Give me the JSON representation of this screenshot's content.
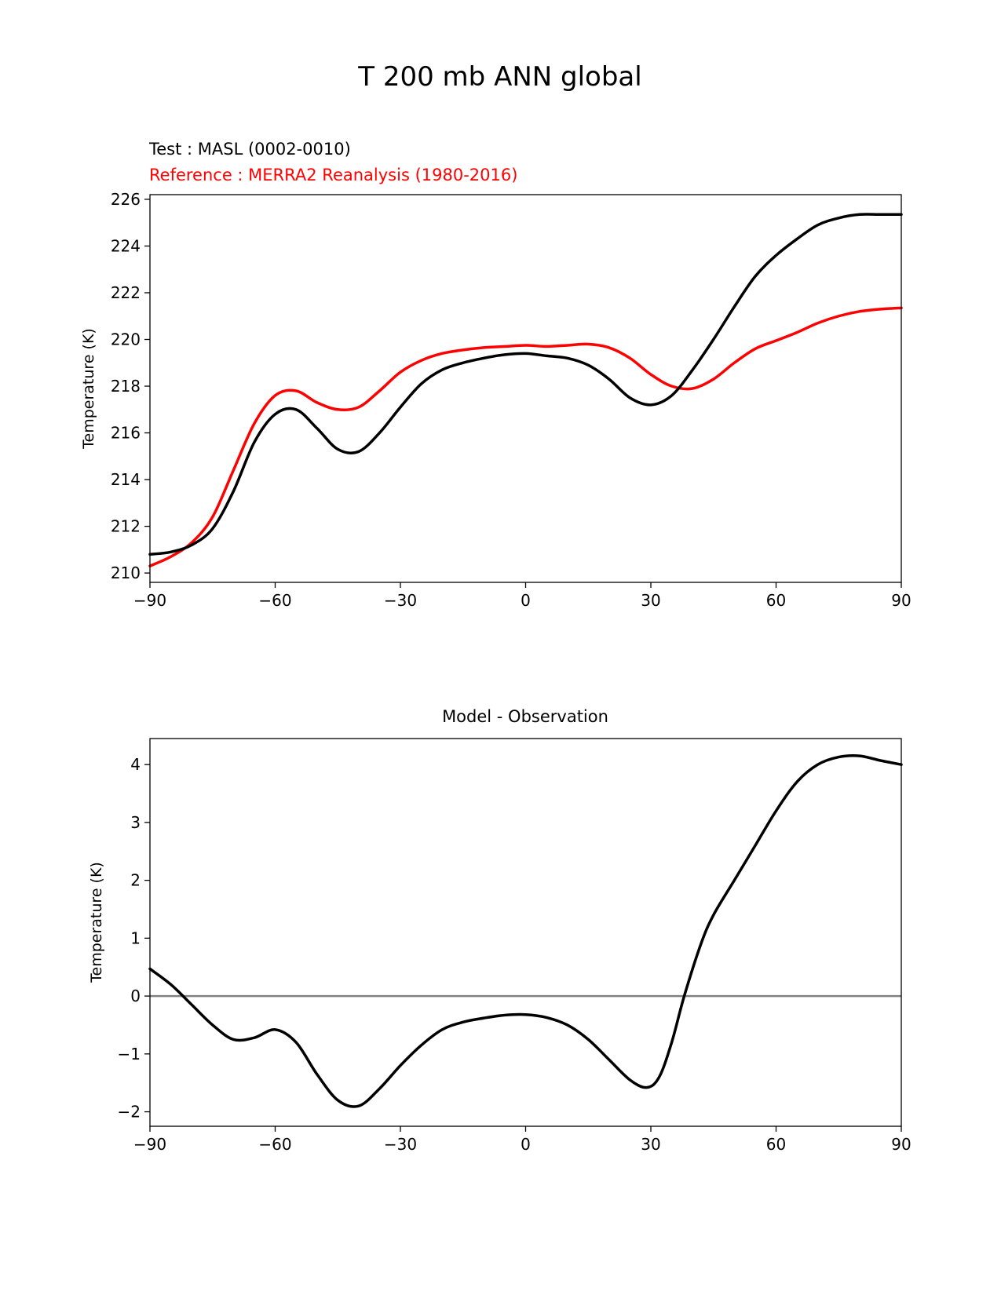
{
  "figure": {
    "title": "T 200 mb ANN global"
  },
  "chart_data": [
    {
      "type": "line",
      "legend": [
        {
          "text": "Test : MASL (0002-0010)",
          "color": "#000000"
        },
        {
          "text": "Reference : MERRA2 Reanalysis (1980-2016)",
          "color": "#ff0000"
        }
      ],
      "title": "",
      "xlabel": "",
      "ylabel": "Temperature (K)",
      "xlim": [
        -90,
        90
      ],
      "ylim": [
        209.6,
        226.2
      ],
      "xticks": [
        -90,
        -60,
        -30,
        0,
        30,
        60,
        90
      ],
      "xtick_labels": [
        "−90",
        "−60",
        "−30",
        "0",
        "30",
        "60",
        "90"
      ],
      "yticks": [
        210,
        212,
        214,
        216,
        218,
        220,
        222,
        224,
        226
      ],
      "ytick_labels": [
        "210",
        "212",
        "214",
        "216",
        "218",
        "220",
        "222",
        "224",
        "226"
      ],
      "grid": false,
      "series": [
        {
          "name": "Test : MASL (0002-0010)",
          "color": "#000000",
          "x": [
            -90,
            -85,
            -80,
            -75,
            -70,
            -65,
            -60,
            -55,
            -50,
            -45,
            -40,
            -35,
            -30,
            -25,
            -20,
            -15,
            -10,
            -5,
            0,
            5,
            10,
            15,
            20,
            25,
            30,
            35,
            40,
            45,
            50,
            55,
            60,
            65,
            70,
            75,
            80,
            85,
            90
          ],
          "y": [
            210.8,
            210.9,
            211.2,
            211.9,
            213.5,
            215.6,
            216.8,
            217.0,
            216.2,
            215.3,
            215.2,
            216.0,
            217.1,
            218.1,
            218.7,
            219.0,
            219.2,
            219.35,
            219.4,
            219.3,
            219.2,
            218.9,
            218.3,
            217.5,
            217.2,
            217.6,
            218.7,
            220.0,
            221.4,
            222.7,
            223.6,
            224.3,
            224.9,
            225.2,
            225.35,
            225.35,
            225.35
          ]
        },
        {
          "name": "Reference : MERRA2 Reanalysis (1980-2016)",
          "color": "#ff0000",
          "x": [
            -90,
            -85,
            -80,
            -75,
            -70,
            -65,
            -60,
            -55,
            -50,
            -45,
            -40,
            -35,
            -30,
            -25,
            -20,
            -15,
            -10,
            -5,
            0,
            5,
            10,
            15,
            20,
            25,
            30,
            35,
            40,
            45,
            50,
            55,
            60,
            65,
            70,
            75,
            80,
            85,
            90
          ],
          "y": [
            210.3,
            210.7,
            211.3,
            212.4,
            214.4,
            216.4,
            217.6,
            217.8,
            217.3,
            217.0,
            217.1,
            217.8,
            218.6,
            219.1,
            219.4,
            219.55,
            219.65,
            219.7,
            219.75,
            219.7,
            219.75,
            219.8,
            219.65,
            219.2,
            218.5,
            218.0,
            217.9,
            218.3,
            219.0,
            219.6,
            219.95,
            220.3,
            220.7,
            221.0,
            221.2,
            221.3,
            221.35
          ]
        }
      ]
    },
    {
      "type": "line",
      "title": "Model - Observation",
      "xlabel": "",
      "ylabel": "Temperature (K)",
      "xlim": [
        -90,
        90
      ],
      "ylim": [
        -2.25,
        4.45
      ],
      "xticks": [
        -90,
        -60,
        -30,
        0,
        30,
        60,
        90
      ],
      "xtick_labels": [
        "−90",
        "−60",
        "−30",
        "0",
        "30",
        "60",
        "90"
      ],
      "yticks": [
        -2,
        -1,
        0,
        1,
        2,
        3,
        4
      ],
      "ytick_labels": [
        "−2",
        "−1",
        "0",
        "1",
        "2",
        "3",
        "4"
      ],
      "grid": false,
      "reference_line": {
        "y": 0,
        "color": "#808080"
      },
      "series": [
        {
          "color": "#000000",
          "x": [
            -90,
            -85,
            -80,
            -75,
            -70,
            -65,
            -60,
            -55,
            -50,
            -45,
            -40,
            -35,
            -30,
            -25,
            -20,
            -15,
            -10,
            -5,
            0,
            5,
            10,
            15,
            20,
            25,
            29,
            32,
            35,
            38,
            42,
            45,
            50,
            55,
            60,
            65,
            70,
            75,
            80,
            85,
            90
          ],
          "y": [
            0.47,
            0.2,
            -0.15,
            -0.5,
            -0.75,
            -0.72,
            -0.58,
            -0.8,
            -1.35,
            -1.8,
            -1.9,
            -1.6,
            -1.2,
            -0.85,
            -0.58,
            -0.45,
            -0.38,
            -0.33,
            -0.32,
            -0.37,
            -0.5,
            -0.75,
            -1.1,
            -1.45,
            -1.58,
            -1.4,
            -0.8,
            0.0,
            0.9,
            1.4,
            2.0,
            2.6,
            3.2,
            3.7,
            4.0,
            4.13,
            4.15,
            4.07,
            4.0
          ]
        }
      ]
    }
  ]
}
